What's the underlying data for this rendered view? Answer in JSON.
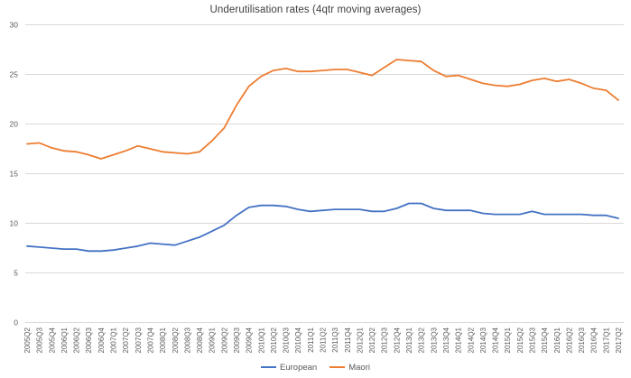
{
  "chart_data": {
    "type": "line",
    "title": "Underutilisation rates (4qtr moving averages)",
    "categories": [
      "2005Q2",
      "2005Q3",
      "2005Q4",
      "2006Q1",
      "2006Q2",
      "2006Q3",
      "2006Q4",
      "2007Q1",
      "2007Q2",
      "2007Q3",
      "2007Q4",
      "2008Q1",
      "2008Q2",
      "2008Q3",
      "2008Q4",
      "2009Q1",
      "2009Q2",
      "2009Q3",
      "2009Q4",
      "2010Q1",
      "2010Q2",
      "2010Q3",
      "2010Q4",
      "2011Q1",
      "2011Q2",
      "2011Q3",
      "2011Q4",
      "2012Q1",
      "2012Q2",
      "2012Q3",
      "2012Q4",
      "2013Q1",
      "2013Q2",
      "2013Q3",
      "2013Q4",
      "2014Q1",
      "2014Q2",
      "2014Q3",
      "2014Q4",
      "2015Q1",
      "2015Q2",
      "2015Q3",
      "2015Q4",
      "2016Q1",
      "2016Q2",
      "2016Q3",
      "2016Q4",
      "2017Q1",
      "2017Q2"
    ],
    "series": [
      {
        "name": "European",
        "color": "#4472C4",
        "values": [
          7.7,
          7.6,
          7.5,
          7.4,
          7.4,
          7.2,
          7.2,
          7.3,
          7.5,
          7.7,
          8.0,
          7.9,
          7.8,
          8.2,
          8.6,
          9.2,
          9.8,
          10.8,
          11.6,
          11.8,
          11.8,
          11.7,
          11.4,
          11.2,
          11.3,
          11.4,
          11.4,
          11.4,
          11.2,
          11.2,
          11.5,
          12.0,
          12.0,
          11.5,
          11.3,
          11.3,
          11.3,
          11.0,
          10.9,
          10.9,
          10.9,
          11.2,
          10.9,
          10.9,
          10.9,
          10.9,
          10.8,
          10.8,
          10.5
        ]
      },
      {
        "name": "Maori",
        "color": "#ED7D31",
        "values": [
          18.0,
          18.1,
          17.6,
          17.3,
          17.2,
          16.9,
          16.5,
          16.9,
          17.3,
          17.8,
          17.5,
          17.2,
          17.1,
          17.0,
          17.2,
          18.3,
          19.6,
          21.9,
          23.8,
          24.8,
          25.4,
          25.6,
          25.3,
          25.3,
          25.4,
          25.5,
          25.5,
          25.2,
          24.9,
          25.7,
          26.5,
          26.4,
          26.3,
          25.4,
          24.8,
          24.9,
          24.5,
          24.1,
          23.9,
          23.8,
          24.0,
          24.4,
          24.6,
          24.3,
          24.5,
          24.1,
          23.6,
          23.4,
          22.4
        ]
      }
    ],
    "xlabel": "",
    "ylabel": "",
    "ylim": [
      0,
      30
    ],
    "yticks": [
      0,
      5,
      10,
      15,
      20,
      25,
      30
    ],
    "grid": "horizontal",
    "legend_position": "bottom"
  },
  "colors": {
    "background": "#FFFFFF",
    "gridline": "#D9D9D9",
    "tick_label": "#595959",
    "title": "#404040"
  }
}
